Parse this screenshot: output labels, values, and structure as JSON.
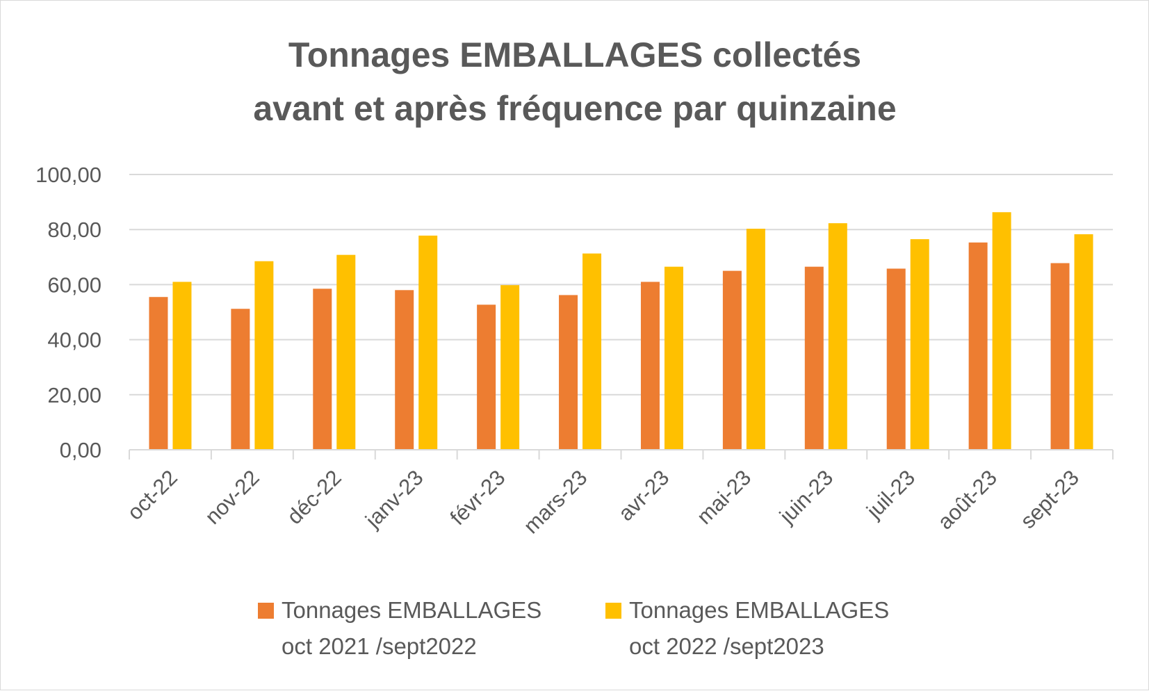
{
  "chart_data": {
    "type": "bar",
    "title_lines": [
      "Tonnages EMBALLAGES collectés",
      "avant et après fréquence par quinzaine"
    ],
    "categories": [
      "oct-22",
      "nov-22",
      "déc-22",
      "janv-23",
      "févr-23",
      "mars-23",
      "avr-23",
      "mai-23",
      "juin-23",
      "juil-23",
      "août-23",
      "sept-23"
    ],
    "series": [
      {
        "name": "Tonnages EMBALLAGES oct 2021 /sept2022",
        "legend_lines": [
          "Tonnages EMBALLAGES",
          "oct 2021 /sept2022"
        ],
        "color": "#ED7D31",
        "values": [
          55.5,
          51.2,
          58.5,
          58.0,
          52.7,
          56.2,
          61.0,
          65.0,
          66.5,
          65.8,
          75.3,
          67.8
        ]
      },
      {
        "name": "Tonnages EMBALLAGES oct 2022 /sept2023",
        "legend_lines": [
          "Tonnages EMBALLAGES",
          "oct 2022 /sept2023"
        ],
        "color": "#FFC000",
        "values": [
          61.0,
          68.5,
          70.8,
          77.8,
          59.8,
          71.3,
          66.5,
          80.3,
          82.3,
          76.5,
          86.3,
          78.3
        ]
      }
    ],
    "y_ticks": [
      "0,00",
      "20,00",
      "40,00",
      "60,00",
      "80,00",
      "100,00"
    ],
    "ylim": [
      0,
      100
    ],
    "grid": true,
    "legend_position": "bottom"
  }
}
